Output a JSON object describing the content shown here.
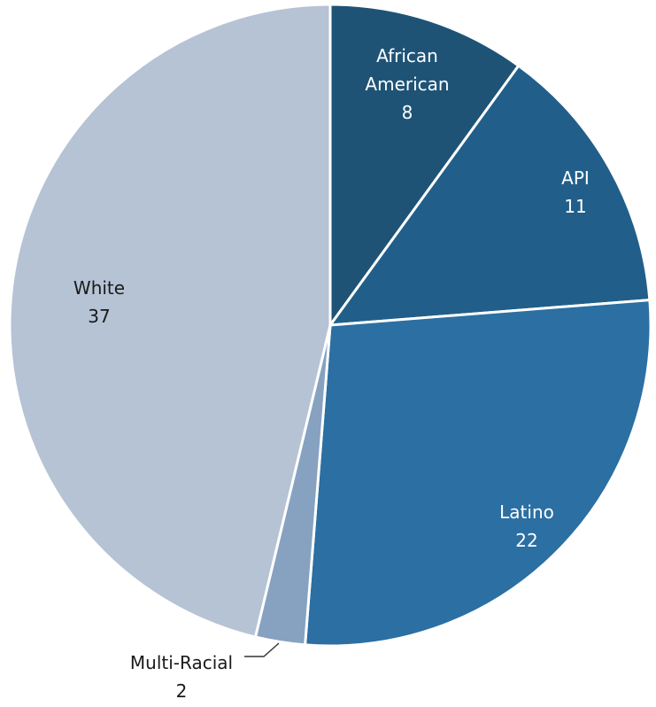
{
  "chart_data": {
    "type": "pie",
    "title": "",
    "slices": [
      {
        "label_lines": [
          "African",
          "American"
        ],
        "value": 8,
        "color": "#1e5376",
        "text_color": "#ffffff"
      },
      {
        "label_lines": [
          "API"
        ],
        "value": 11,
        "color": "#215f8a",
        "text_color": "#ffffff"
      },
      {
        "label_lines": [
          "Latino"
        ],
        "value": 22,
        "color": "#2b6fa3",
        "text_color": "#ffffff"
      },
      {
        "label_lines": [
          "Multi-Racial"
        ],
        "value": 2,
        "color": "#86a2c0",
        "text_color": "#1a1a1a"
      },
      {
        "label_lines": [
          "White"
        ],
        "value": 37,
        "color": "#b6c3d5",
        "text_color": "#1a1a1a"
      }
    ],
    "start_angle_deg": 0,
    "direction": "clockwise",
    "legend": "none"
  }
}
